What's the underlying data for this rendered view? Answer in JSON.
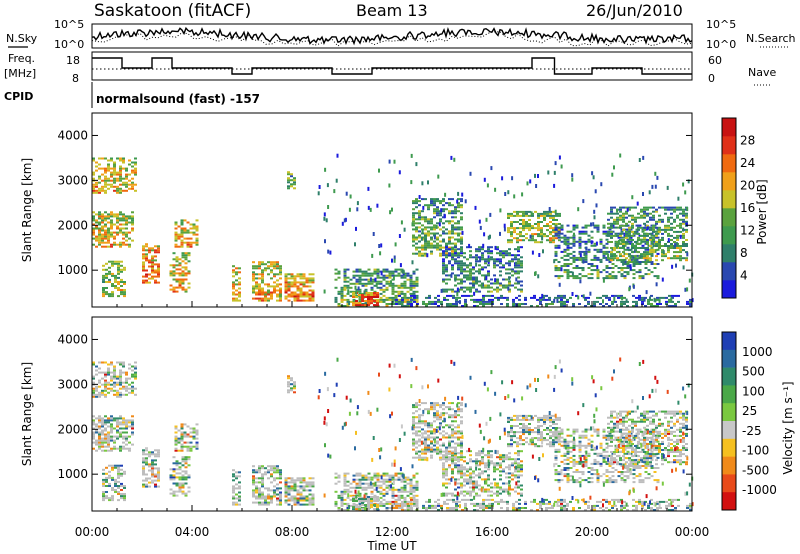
{
  "header": {
    "title": "Saskatoon (fitACF)",
    "beam": "Beam 13",
    "date": "26/Jun/2010"
  },
  "panels": {
    "nsky_label": "N.Sky",
    "nsearch_label": "N.Search",
    "freq_label_1": "Freq.",
    "freq_label_2": "[MHz]",
    "nave_label": "Nave",
    "cpid_label": "CPID",
    "cpid_text": "normalsound (fast) -157",
    "noise_ticks": [
      "10^5",
      "10^0"
    ],
    "freq_ticks": [
      "18",
      "8"
    ],
    "nave_ticks": [
      "60",
      "0"
    ]
  },
  "chart_data": [
    {
      "type": "heatmap",
      "title": "",
      "xlabel": "",
      "ylabel": "Slant Range [km]",
      "xlim": [
        0,
        24
      ],
      "ylim": [
        180,
        4500
      ],
      "yticks": [
        "1000",
        "2000",
        "3000",
        "4000"
      ],
      "colorbar": {
        "label": "Power [dB]",
        "ticks": [
          "4",
          "8",
          "12",
          "16",
          "20",
          "24",
          "28"
        ],
        "colors": [
          "#1b1bdc",
          "#2a48b0",
          "#2f7f6a",
          "#3e9a4e",
          "#5aa23e",
          "#c8c22a",
          "#f0a01a",
          "#f06a10",
          "#e03018",
          "#c81212"
        ]
      }
    },
    {
      "type": "heatmap",
      "title": "",
      "xlabel": "Time UT",
      "ylabel": "Slant Range [km]",
      "xlim": [
        0,
        24
      ],
      "ylim": [
        180,
        4500
      ],
      "yticks": [
        "1000",
        "2000",
        "3000",
        "4000"
      ],
      "xticks": [
        "00:00",
        "04:00",
        "08:00",
        "12:00",
        "16:00",
        "20:00",
        "00:00"
      ],
      "colorbar": {
        "label": "Velocity [m s⁻¹]",
        "ticks": [
          "1000",
          "500",
          "100",
          "25",
          "-25",
          "-100",
          "-500",
          "-1000"
        ],
        "colors": [
          "#1f3fb4",
          "#2a6aa0",
          "#2f8a6a",
          "#4aa848",
          "#7ac840",
          "#c8c8c8",
          "#f5c020",
          "#f08a1a",
          "#e84a1a",
          "#d21010"
        ]
      }
    }
  ],
  "colors": {
    "ground_scatter": "#bdbdbd",
    "axis": "#000000"
  }
}
